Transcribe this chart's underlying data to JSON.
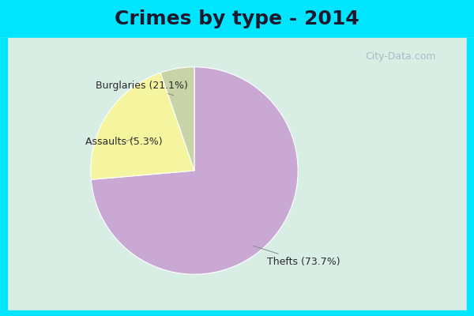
{
  "title": "Crimes by type - 2014",
  "slices": [
    {
      "label": "Thefts (73.7%)",
      "value": 73.7,
      "color": "#c9a8d4"
    },
    {
      "label": "Burglaries (21.1%)",
      "value": 21.1,
      "color": "#f5f5a0"
    },
    {
      "label": "Assaults (5.3%)",
      "value": 5.3,
      "color": "#c8d4a8"
    }
  ],
  "bg_color_top": "#00e5ff",
  "bg_color_main_top": "#dde8e8",
  "bg_color_main_bottom": "#c8e8d0",
  "title_fontsize": 18,
  "label_fontsize": 9,
  "watermark": "City-Data.com",
  "title_color": "#1a1a2e"
}
